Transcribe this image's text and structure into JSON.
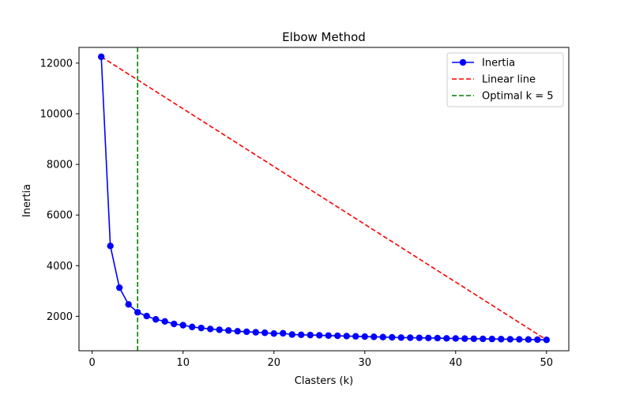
{
  "chart_data": {
    "type": "line",
    "title": "Elbow Method",
    "xlabel": "Clasters (k)",
    "ylabel": "Inertia",
    "xlim": [
      -1.45,
      52.45
    ],
    "ylim": [
      640,
      12620
    ],
    "xticks": [
      0,
      10,
      20,
      30,
      40,
      50
    ],
    "yticks": [
      2000,
      4000,
      6000,
      8000,
      10000,
      12000
    ],
    "grid": false,
    "legend_position": "top-right",
    "series": [
      {
        "name": "Inertia",
        "style": "line-with-markers",
        "color": "#0000ff",
        "x": [
          1,
          2,
          3,
          4,
          5,
          6,
          7,
          8,
          9,
          10,
          11,
          12,
          13,
          14,
          15,
          16,
          17,
          18,
          19,
          20,
          21,
          22,
          23,
          24,
          25,
          26,
          27,
          28,
          29,
          30,
          31,
          32,
          33,
          34,
          35,
          36,
          37,
          38,
          39,
          40,
          41,
          42,
          43,
          44,
          45,
          46,
          47,
          48,
          49,
          50
        ],
        "y": [
          12250,
          4780,
          3130,
          2470,
          2160,
          2010,
          1880,
          1800,
          1700,
          1650,
          1580,
          1540,
          1500,
          1470,
          1440,
          1410,
          1390,
          1370,
          1350,
          1320,
          1330,
          1280,
          1270,
          1260,
          1250,
          1240,
          1230,
          1220,
          1210,
          1200,
          1190,
          1180,
          1170,
          1160,
          1155,
          1150,
          1145,
          1140,
          1130,
          1125,
          1120,
          1115,
          1110,
          1105,
          1100,
          1095,
          1090,
          1085,
          1080,
          1070
        ]
      },
      {
        "name": "Linear line",
        "style": "dashed",
        "color": "#ff0000",
        "x": [
          1,
          50
        ],
        "y": [
          12250,
          1070
        ]
      },
      {
        "name": "Optimal k = 5",
        "style": "dashed-vertical",
        "color": "#008000",
        "x": 5
      }
    ]
  }
}
